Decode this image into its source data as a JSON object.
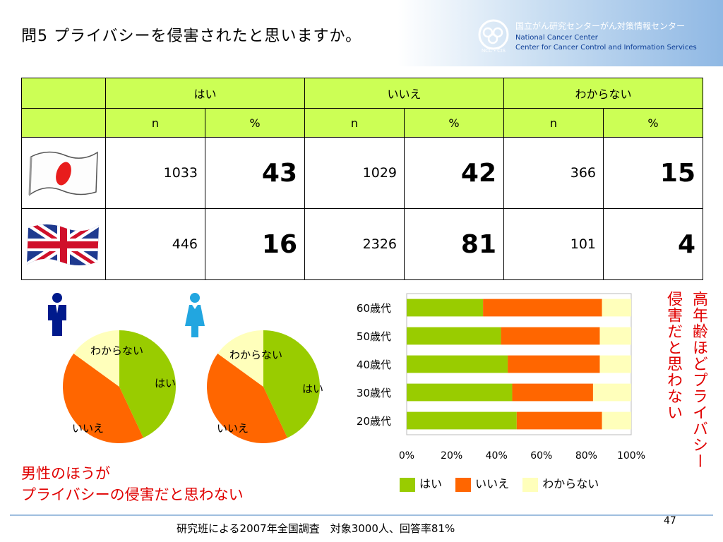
{
  "header": {
    "title": "問5 プライバシーを侵害されたと思いますか。",
    "org_jp": "国立がん研究センターがん対策情報センター",
    "org_en1": "National Cancer Center",
    "org_en2": "Center for Cancer Control and Information Services",
    "logo_text": "NCC・CIS"
  },
  "table": {
    "groups": [
      "はい",
      "いいえ",
      "わからない"
    ],
    "subheaders": [
      "n",
      "%",
      "n",
      "%",
      "n",
      "%"
    ],
    "rows": [
      {
        "flag": "japan-flag",
        "values": [
          "1033",
          "43",
          "1029",
          "42",
          "366",
          "15"
        ]
      },
      {
        "flag": "uk-flag",
        "values": [
          "446",
          "16",
          "2326",
          "81",
          "101",
          "4"
        ]
      }
    ]
  },
  "pies": [
    {
      "figure": "male-figure-icon",
      "labels": {
        "yes": "はい",
        "no": "いいえ",
        "unknown": "わからない"
      },
      "values": [
        43,
        42,
        15
      ]
    },
    {
      "figure": "female-figure-icon",
      "labels": {
        "yes": "はい",
        "no": "いいえ",
        "unknown": "わからない"
      },
      "values": [
        43,
        42,
        15
      ]
    }
  ],
  "chart_data": {
    "type": "bar",
    "orientation": "horizontal",
    "stacked": "percent",
    "categories": [
      "60歳代",
      "50歳代",
      "40歳代",
      "30歳代",
      "20歳代"
    ],
    "series": [
      {
        "name": "はい",
        "color": "#99cc00",
        "values": [
          34,
          42,
          45,
          47,
          49
        ]
      },
      {
        "name": "いいえ",
        "color": "#ff6600",
        "values": [
          53,
          44,
          41,
          36,
          38
        ]
      },
      {
        "name": "わからない",
        "color": "#ffffbb",
        "values": [
          13,
          14,
          14,
          17,
          13
        ]
      }
    ],
    "x_ticks": [
      "0%",
      "20%",
      "40%",
      "60%",
      "80%",
      "100%"
    ],
    "xlim": [
      0,
      100
    ],
    "legend": "bottom"
  },
  "notes": {
    "left_line1": "男性のほうが",
    "left_line2": "プライバシーの侵害だと思わない",
    "right_vertical_1": "高年齢ほどプライバシー",
    "right_vertical_2": "侵害だと思わない"
  },
  "footer": {
    "text": "研究班による2007年全国調査　対象3000人、回答率81%",
    "page": "47"
  }
}
